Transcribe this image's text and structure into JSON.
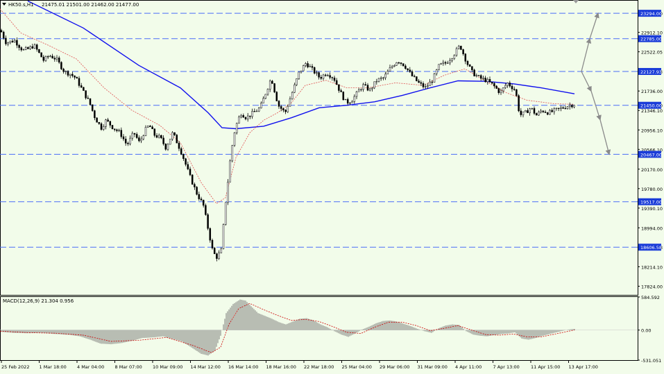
{
  "header": {
    "title": "HK50.s,H1",
    "ohlc": "21475.01 21501.00 21462.00 21477.00"
  },
  "colors": {
    "background": "#f2fcea",
    "candle": "#000000",
    "ma_long": "#1010ee",
    "ma_short": "#e05050",
    "level_line": "#4a6cf7",
    "level_label_bg": "#1a3cd8",
    "arrow": "#8a8a8a",
    "macd_signal": "#cc0000"
  },
  "chart_data": [
    {
      "type": "candlestick",
      "symbol": "HK50.s",
      "timeframe": "H1",
      "ylim": [
        17650,
        23560
      ],
      "y_ticks": [
        "23294.00",
        "22912.10",
        "22522.05",
        "22127.93",
        "21736.00",
        "21450.00",
        "21346.10",
        "20956.10",
        "20566.10",
        "20170.00",
        "19780.00",
        "19390.10",
        "18994.00",
        "18606.58",
        "18214.10",
        "17824.00"
      ],
      "levels": [
        {
          "value": 23294.0,
          "label": "23294.00"
        },
        {
          "value": 22785.0,
          "label": "22785.00"
        },
        {
          "value": 22127.93,
          "label": "22127.93"
        },
        {
          "value": 21450.0,
          "label": "21450.00"
        },
        {
          "value": 20467.0,
          "label": "20467.00"
        },
        {
          "value": 19517.0,
          "label": "19517.00"
        },
        {
          "value": 18606.58,
          "label": "18606.58"
        }
      ],
      "close_path": [
        [
          0,
          22950
        ],
        [
          8,
          22700
        ],
        [
          20,
          22750
        ],
        [
          32,
          22550
        ],
        [
          40,
          22580
        ],
        [
          48,
          22650
        ],
        [
          62,
          22350
        ],
        [
          70,
          22450
        ],
        [
          80,
          22380
        ],
        [
          92,
          22120
        ],
        [
          100,
          22080
        ],
        [
          108,
          22000
        ],
        [
          118,
          21750
        ],
        [
          128,
          21500
        ],
        [
          136,
          21200
        ],
        [
          145,
          21000
        ],
        [
          152,
          21150
        ],
        [
          162,
          21000
        ],
        [
          172,
          20900
        ],
        [
          182,
          20650
        ],
        [
          192,
          20900
        ],
        [
          200,
          20700
        ],
        [
          208,
          20950
        ],
        [
          214,
          21050
        ],
        [
          222,
          20850
        ],
        [
          230,
          20800
        ],
        [
          238,
          20600
        ],
        [
          248,
          20900
        ],
        [
          256,
          20650
        ],
        [
          262,
          20450
        ],
        [
          272,
          20050
        ],
        [
          282,
          19700
        ],
        [
          292,
          19450
        ],
        [
          300,
          18900
        ],
        [
          306,
          18500
        ],
        [
          312,
          18400
        ],
        [
          318,
          18550
        ],
        [
          324,
          19500
        ],
        [
          332,
          20500
        ],
        [
          338,
          21000
        ],
        [
          346,
          21300
        ],
        [
          354,
          21200
        ],
        [
          364,
          21300
        ],
        [
          374,
          21400
        ],
        [
          382,
          21700
        ],
        [
          390,
          22000
        ],
        [
          400,
          21450
        ],
        [
          410,
          21300
        ],
        [
          420,
          21700
        ],
        [
          430,
          22100
        ],
        [
          440,
          22300
        ],
        [
          450,
          22150
        ],
        [
          460,
          22000
        ],
        [
          470,
          22100
        ],
        [
          480,
          22000
        ],
        [
          490,
          21700
        ],
        [
          498,
          21500
        ],
        [
          506,
          21550
        ],
        [
          514,
          21700
        ],
        [
          522,
          21850
        ],
        [
          532,
          21750
        ],
        [
          542,
          21950
        ],
        [
          552,
          22000
        ],
        [
          562,
          22200
        ],
        [
          572,
          22350
        ],
        [
          582,
          22250
        ],
        [
          592,
          22050
        ],
        [
          602,
          21900
        ],
        [
          612,
          21800
        ],
        [
          622,
          21950
        ],
        [
          632,
          22250
        ],
        [
          642,
          22300
        ],
        [
          652,
          22450
        ],
        [
          662,
          22650
        ],
        [
          672,
          22300
        ],
        [
          680,
          22100
        ],
        [
          690,
          22000
        ],
        [
          700,
          21950
        ],
        [
          710,
          21850
        ],
        [
          720,
          21700
        ],
        [
          730,
          21900
        ],
        [
          742,
          21750
        ],
        [
          748,
          21250
        ],
        [
          756,
          21300
        ],
        [
          764,
          21400
        ],
        [
          772,
          21250
        ],
        [
          780,
          21350
        ],
        [
          790,
          21300
        ],
        [
          800,
          21350
        ],
        [
          810,
          21400
        ],
        [
          820,
          21450
        ],
        [
          828,
          21477
        ]
      ],
      "ma_long": [
        [
          40,
          23540
        ],
        [
          120,
          23000
        ],
        [
          200,
          22250
        ],
        [
          260,
          21800
        ],
        [
          300,
          21300
        ],
        [
          320,
          21000
        ],
        [
          340,
          20980
        ],
        [
          380,
          21030
        ],
        [
          420,
          21200
        ],
        [
          460,
          21400
        ],
        [
          500,
          21450
        ],
        [
          540,
          21520
        ],
        [
          580,
          21650
        ],
        [
          620,
          21800
        ],
        [
          660,
          21940
        ],
        [
          700,
          21930
        ],
        [
          740,
          21880
        ],
        [
          780,
          21800
        ],
        [
          828,
          21680
        ]
      ],
      "ma_short": [
        [
          0,
          23380
        ],
        [
          30,
          22900
        ],
        [
          70,
          22650
        ],
        [
          110,
          22380
        ],
        [
          150,
          21800
        ],
        [
          190,
          21350
        ],
        [
          230,
          21050
        ],
        [
          260,
          20700
        ],
        [
          290,
          19900
        ],
        [
          312,
          19480
        ],
        [
          325,
          19600
        ],
        [
          340,
          20400
        ],
        [
          360,
          20900
        ],
        [
          380,
          21150
        ],
        [
          400,
          21300
        ],
        [
          420,
          21500
        ],
        [
          440,
          21850
        ],
        [
          470,
          21950
        ],
        [
          500,
          21800
        ],
        [
          530,
          21800
        ],
        [
          570,
          21900
        ],
        [
          610,
          21850
        ],
        [
          640,
          22050
        ],
        [
          670,
          22180
        ],
        [
          700,
          21930
        ],
        [
          730,
          21700
        ],
        [
          760,
          21550
        ],
        [
          800,
          21480
        ],
        [
          828,
          21470
        ]
      ],
      "projection_arrows": [
        {
          "from": [
            838,
            22127.93
          ],
          "to": [
            850,
            22785.0
          ]
        },
        {
          "from": [
            850,
            22785.0
          ],
          "to": [
            862,
            23294.0
          ]
        },
        {
          "from": [
            838,
            22127.93
          ],
          "to": [
            852,
            21736.0
          ]
        },
        {
          "from": [
            852,
            21736.0
          ],
          "to": [
            865,
            21160.0
          ]
        },
        {
          "from": [
            865,
            21160.0
          ],
          "to": [
            878,
            20467.0
          ]
        }
      ]
    },
    {
      "type": "bar",
      "indicator": "MACD",
      "title": "MACD(12,26,9) 21.304 0.956",
      "ylim": [
        -531.051,
        584.592
      ],
      "y_ticks": [
        "584.592",
        "0.00",
        "-531.051"
      ],
      "histogram": [
        [
          0,
          -30
        ],
        [
          20,
          -50
        ],
        [
          40,
          -55
        ],
        [
          60,
          -50
        ],
        [
          80,
          -70
        ],
        [
          100,
          -85
        ],
        [
          115,
          -110
        ],
        [
          130,
          -170
        ],
        [
          145,
          -240
        ],
        [
          160,
          -250
        ],
        [
          175,
          -230
        ],
        [
          190,
          -190
        ],
        [
          205,
          -140
        ],
        [
          220,
          -130
        ],
        [
          235,
          -110
        ],
        [
          250,
          -160
        ],
        [
          262,
          -200
        ],
        [
          275,
          -300
        ],
        [
          290,
          -420
        ],
        [
          300,
          -450
        ],
        [
          310,
          -360
        ],
        [
          318,
          -100
        ],
        [
          326,
          300
        ],
        [
          336,
          460
        ],
        [
          346,
          540
        ],
        [
          354,
          520
        ],
        [
          362,
          420
        ],
        [
          372,
          300
        ],
        [
          382,
          250
        ],
        [
          392,
          200
        ],
        [
          402,
          140
        ],
        [
          412,
          100
        ],
        [
          422,
          150
        ],
        [
          432,
          200
        ],
        [
          442,
          210
        ],
        [
          452,
          170
        ],
        [
          462,
          100
        ],
        [
          472,
          50
        ],
        [
          482,
          -20
        ],
        [
          492,
          -80
        ],
        [
          502,
          -120
        ],
        [
          512,
          -60
        ],
        [
          522,
          10
        ],
        [
          532,
          60
        ],
        [
          542,
          120
        ],
        [
          552,
          160
        ],
        [
          562,
          170
        ],
        [
          572,
          150
        ],
        [
          582,
          110
        ],
        [
          592,
          70
        ],
        [
          602,
          20
        ],
        [
          612,
          -20
        ],
        [
          622,
          -50
        ],
        [
          632,
          30
        ],
        [
          642,
          80
        ],
        [
          652,
          100
        ],
        [
          662,
          90
        ],
        [
          672,
          -20
        ],
        [
          682,
          -80
        ],
        [
          692,
          -100
        ],
        [
          702,
          -110
        ],
        [
          712,
          -90
        ],
        [
          722,
          -70
        ],
        [
          732,
          -60
        ],
        [
          742,
          -40
        ],
        [
          752,
          -150
        ],
        [
          762,
          -170
        ],
        [
          772,
          -140
        ],
        [
          782,
          -100
        ],
        [
          792,
          -70
        ],
        [
          802,
          -40
        ],
        [
          812,
          -10
        ],
        [
          820,
          10
        ],
        [
          828,
          21
        ]
      ],
      "signal": [
        [
          0,
          -20
        ],
        [
          40,
          -45
        ],
        [
          80,
          -55
        ],
        [
          120,
          -90
        ],
        [
          160,
          -200
        ],
        [
          200,
          -180
        ],
        [
          240,
          -130
        ],
        [
          280,
          -280
        ],
        [
          305,
          -400
        ],
        [
          318,
          -300
        ],
        [
          330,
          100
        ],
        [
          344,
          380
        ],
        [
          360,
          470
        ],
        [
          380,
          360
        ],
        [
          400,
          260
        ],
        [
          420,
          170
        ],
        [
          440,
          190
        ],
        [
          460,
          150
        ],
        [
          480,
          60
        ],
        [
          500,
          -40
        ],
        [
          520,
          -60
        ],
        [
          540,
          50
        ],
        [
          560,
          140
        ],
        [
          580,
          140
        ],
        [
          600,
          80
        ],
        [
          620,
          -10
        ],
        [
          640,
          30
        ],
        [
          660,
          80
        ],
        [
          680,
          0
        ],
        [
          700,
          -80
        ],
        [
          720,
          -90
        ],
        [
          740,
          -70
        ],
        [
          760,
          -120
        ],
        [
          780,
          -120
        ],
        [
          800,
          -70
        ],
        [
          828,
          1
        ]
      ]
    }
  ],
  "x_axis": {
    "labels": [
      "25 Feb 2022",
      "1 Mar 18:00",
      "4 Mar 04:00",
      "8 Mar 07:00",
      "10 Mar 09:00",
      "14 Mar 12:00",
      "16 Mar 14:00",
      "18 Mar 16:00",
      "22 Mar 18:00",
      "25 Mar 04:00",
      "29 Mar 06:00",
      "31 Mar 09:00",
      "4 Apr 11:00",
      "7 Apr 13:00",
      "11 Apr 15:00",
      "13 Apr 17:00"
    ]
  }
}
